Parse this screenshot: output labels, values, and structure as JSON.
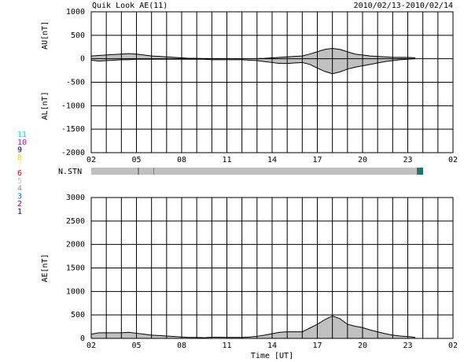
{
  "title": "Quik Look AE(11)",
  "date_range": "2010/02/13-2010/02/14",
  "nstn_label": "N.STN",
  "station_legend": [
    {
      "label": "11",
      "color": "#00e0e0"
    },
    {
      "label": "10",
      "color": "#e000e0"
    },
    {
      "label": "9",
      "color": "#000090"
    },
    {
      "label": "8",
      "color": "#e0e000"
    },
    {
      "label": "7",
      "color": "#e0f0a0"
    },
    {
      "label": "6",
      "color": "#e00000"
    },
    {
      "label": "5",
      "color": "#c8c8c8"
    },
    {
      "label": "4",
      "color": "#909090"
    },
    {
      "label": "3",
      "color": "#008080"
    },
    {
      "label": "2",
      "color": "#800080"
    },
    {
      "label": "1",
      "color": "#0000e0"
    }
  ],
  "chart_data": [
    {
      "type": "area",
      "x": [
        2,
        2.5,
        3,
        3.5,
        4,
        4.5,
        5,
        5.5,
        6,
        6.5,
        7,
        7.5,
        8,
        8.5,
        9,
        9.5,
        10,
        10.5,
        11,
        11.5,
        12,
        12.5,
        13,
        13.5,
        14,
        14.5,
        15,
        15.5,
        16,
        16.5,
        17,
        17.5,
        18,
        18.5,
        19,
        19.5,
        20,
        20.5,
        21,
        21.5,
        22,
        22.5,
        23,
        23.5
      ],
      "series": [
        {
          "ylabel": "AU[nT]",
          "color": "#c0c0c0",
          "values": [
            60,
            70,
            80,
            90,
            100,
            110,
            100,
            80,
            60,
            50,
            40,
            30,
            20,
            10,
            10,
            5,
            5,
            5,
            0,
            0,
            0,
            0,
            5,
            10,
            20,
            30,
            40,
            50,
            60,
            100,
            150,
            200,
            220,
            200,
            150,
            100,
            80,
            60,
            50,
            40,
            30,
            30,
            30,
            20
          ]
        },
        {
          "ylabel": "AL[nT]",
          "color": "#c0c0c0",
          "values": [
            -30,
            -50,
            -40,
            -30,
            -20,
            -20,
            -10,
            -10,
            -10,
            -10,
            -10,
            -10,
            -10,
            -10,
            -10,
            -10,
            -20,
            -20,
            -20,
            -20,
            -20,
            -30,
            -40,
            -60,
            -80,
            -100,
            -100,
            -90,
            -80,
            -120,
            -200,
            -270,
            -320,
            -280,
            -220,
            -180,
            -150,
            -120,
            -90,
            -60,
            -40,
            -20,
            -10,
            0
          ]
        }
      ],
      "xlim": [
        2,
        26
      ],
      "xticks": [
        {
          "value": 2,
          "label": "02"
        },
        {
          "value": 5,
          "label": "05"
        },
        {
          "value": 8,
          "label": "08"
        },
        11,
        14,
        17,
        20,
        23,
        {
          "value": 26,
          "label": "02"
        }
      ],
      "xgrid": [
        2,
        3,
        4,
        5,
        6,
        7,
        8,
        9,
        10,
        11,
        12,
        13,
        14,
        15,
        16,
        17,
        18,
        19,
        20,
        21,
        22,
        23,
        24,
        25,
        26
      ],
      "ylim": [
        -2000,
        1000
      ],
      "yticks": [
        -2000,
        -1500,
        -1000,
        -500,
        0,
        500,
        1000
      ]
    },
    {
      "type": "area",
      "xlabel": "Time [UT]",
      "x": [
        2,
        2.5,
        3,
        3.5,
        4,
        4.5,
        5,
        5.5,
        6,
        6.5,
        7,
        7.5,
        8,
        8.5,
        9,
        9.5,
        10,
        10.5,
        11,
        11.5,
        12,
        12.5,
        13,
        13.5,
        14,
        14.5,
        15,
        15.5,
        16,
        16.5,
        17,
        17.5,
        18,
        18.5,
        19,
        19.5,
        20,
        20.5,
        21,
        21.5,
        22,
        22.5,
        23,
        23.5
      ],
      "series": [
        {
          "ylabel": "AE[nT]",
          "color": "#c0c0c0",
          "values": [
            90,
            120,
            120,
            120,
            120,
            130,
            110,
            90,
            70,
            60,
            50,
            40,
            30,
            20,
            20,
            15,
            25,
            25,
            20,
            20,
            20,
            30,
            45,
            70,
            100,
            130,
            140,
            140,
            140,
            220,
            300,
            400,
            480,
            420,
            300,
            260,
            230,
            180,
            140,
            100,
            70,
            50,
            40,
            20
          ]
        }
      ],
      "xlim": [
        2,
        26
      ],
      "xticks": [
        {
          "value": 2,
          "label": "02"
        },
        {
          "value": 5,
          "label": "05"
        },
        {
          "value": 8,
          "label": "08"
        },
        11,
        14,
        17,
        20,
        23,
        {
          "value": 26,
          "label": "02"
        }
      ],
      "xgrid": [
        2,
        3,
        4,
        5,
        6,
        7,
        8,
        9,
        10,
        11,
        12,
        13,
        14,
        15,
        16,
        17,
        18,
        19,
        20,
        21,
        22,
        23,
        24,
        25,
        26
      ],
      "ylim": [
        0,
        3000
      ],
      "yticks": [
        0,
        500,
        1000,
        1500,
        2000,
        2500,
        3000
      ]
    }
  ]
}
